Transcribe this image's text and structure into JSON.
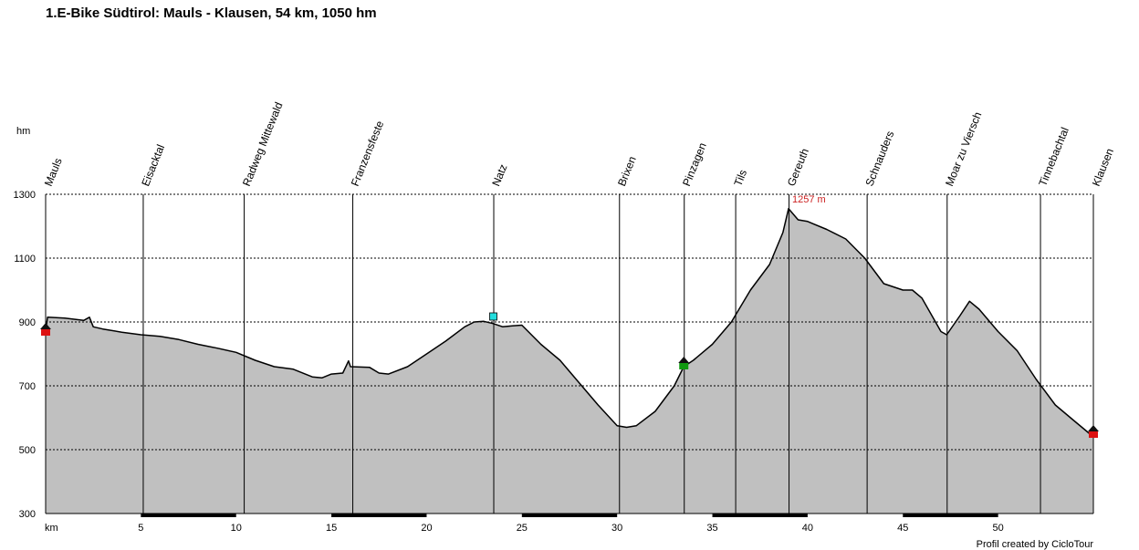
{
  "title": "1.E-Bike Südtirol: Mauls - Klausen, 54 km, 1050 hm",
  "credit": "Profil created by CicloTour",
  "colors": {
    "fill": "#c0c0c0",
    "line": "#000000",
    "grid": "#000000",
    "peak_label": "#cc2222",
    "start_marker": "#dd1111",
    "green_marker": "#119911",
    "cyan_marker": "#22dddd"
  },
  "chart_data": {
    "type": "area",
    "title": "1.E-Bike Südtirol: Mauls - Klausen, 54 km, 1050 hm",
    "xlabel": "km",
    "ylabel": "hm",
    "xlim": [
      0,
      55
    ],
    "ylim": [
      300,
      1300
    ],
    "yticks": [
      300,
      500,
      700,
      900,
      1100,
      1300
    ],
    "xticks": [
      5,
      10,
      15,
      20,
      25,
      30,
      35,
      40,
      45,
      50
    ],
    "grid": "horizontal dashed",
    "peak_label": "1257 m",
    "peak": {
      "x": 39,
      "y": 1257
    },
    "waypoints": [
      {
        "name": "Mauls",
        "x": 0
      },
      {
        "name": "Eisacktal",
        "x": 5.1
      },
      {
        "name": "Radweg Mittewald",
        "x": 10.4
      },
      {
        "name": "Franzensfeste",
        "x": 16.1
      },
      {
        "name": "Natz",
        "x": 23.5
      },
      {
        "name": "Brixen",
        "x": 30.1
      },
      {
        "name": "Pinzagen",
        "x": 33.5
      },
      {
        "name": "Tils",
        "x": 36.2
      },
      {
        "name": "Gereuth",
        "x": 39
      },
      {
        "name": "Schnauders",
        "x": 43.1
      },
      {
        "name": "Moar zu Viersch",
        "x": 47.3
      },
      {
        "name": "Tinnebachtal",
        "x": 52.2
      },
      {
        "name": "Klausen",
        "x": 55
      }
    ],
    "series": [
      {
        "x": [
          0,
          0.1,
          1,
          2,
          2.3,
          2.5,
          3,
          4,
          5,
          6,
          7,
          8,
          9,
          10,
          11,
          12,
          13,
          14,
          14.5,
          15,
          15.6,
          15.9,
          16,
          17,
          17.5,
          18,
          19,
          20,
          21,
          22,
          22.5,
          23,
          23.5,
          24,
          24.5,
          25,
          26,
          27,
          28,
          29,
          30,
          30.5,
          31,
          32,
          33,
          33.5,
          34,
          35,
          36,
          37,
          38,
          38.7,
          39,
          39.5,
          40,
          41,
          42,
          43,
          44,
          45,
          45.5,
          46,
          47,
          47.3,
          48,
          48.5,
          49,
          50,
          51,
          52,
          53,
          54,
          54.6,
          55
        ],
        "y": [
          870,
          915,
          912,
          905,
          915,
          885,
          878,
          868,
          860,
          855,
          845,
          830,
          818,
          805,
          780,
          760,
          752,
          728,
          725,
          737,
          740,
          778,
          760,
          758,
          740,
          737,
          760,
          800,
          840,
          885,
          900,
          902,
          895,
          885,
          888,
          890,
          830,
          780,
          710,
          640,
          575,
          570,
          575,
          620,
          700,
          760,
          780,
          830,
          900,
          1000,
          1080,
          1180,
          1255,
          1220,
          1215,
          1190,
          1160,
          1100,
          1020,
          1000,
          1000,
          975,
          870,
          860,
          920,
          965,
          940,
          870,
          810,
          720,
          640,
          590,
          560,
          540
        ]
      }
    ]
  }
}
